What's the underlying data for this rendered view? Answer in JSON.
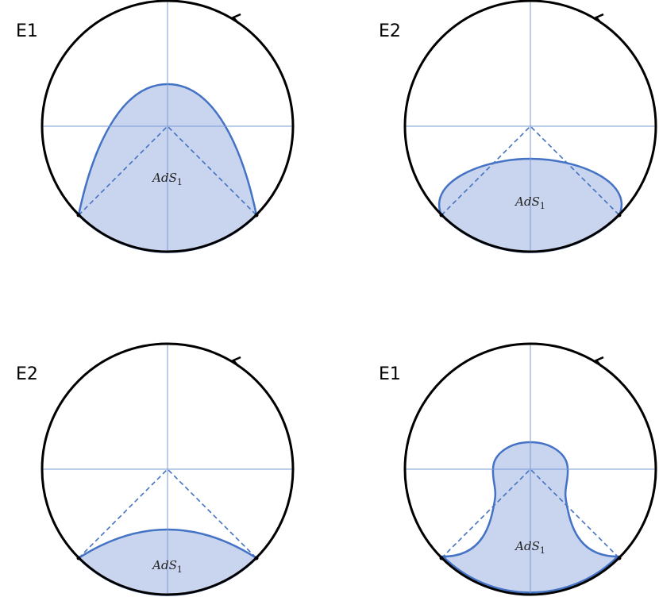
{
  "panels": [
    {
      "label": "E1",
      "region": {
        "main": "AdS",
        "sub": "1"
      }
    },
    {
      "label": "E2",
      "region": {
        "main": "AdS",
        "sub": "1"
      }
    },
    {
      "label": "E2",
      "region": {
        "main": "AdS",
        "sub": "1"
      }
    },
    {
      "label": "E1",
      "region": {
        "main": "AdS",
        "sub": "1"
      }
    }
  ]
}
